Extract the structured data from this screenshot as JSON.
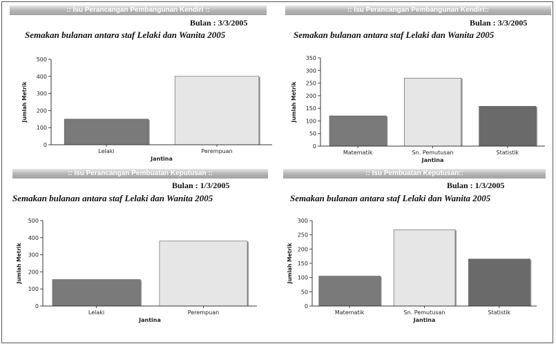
{
  "panels": [
    {
      "header": ":: Isu Perancangan Pembangunan Kendiri ::",
      "date": "Bulan : 3/3/2005",
      "title": "Semakan bulanan antara staf Lelaki dan Wanita 2005"
    },
    {
      "header": ":: Isu Perancangan Pembangunan Kendiri::",
      "date": "Bulan : 3/3/2005",
      "title": "Semakan bulanan antara staf Lelaki dan Wanita 2005"
    },
    {
      "header": ":: Isu Perancangan Pembuatan Keputusan ::",
      "date": "Bulan : 1/3/2005",
      "title": "Semakan bulanan antara staf Lelaki dan Wanita 2005"
    },
    {
      "header": ":: Isu Pembuatan Keputusan::",
      "date": "Bulan : 1/3/2005",
      "title": "Semakan bulanan antara staf Lelaki dan Wanita 2005"
    }
  ],
  "chart_data": [
    {
      "type": "bar",
      "categories": [
        "Lelaki",
        "Perempuan"
      ],
      "values": [
        150,
        400
      ],
      "colors": [
        "#7a7a7a",
        "#e6e6e6"
      ],
      "xlabel": "Jantina",
      "ylabel": "Jumlah Metrik",
      "ylim": [
        0,
        500
      ],
      "yticks": [
        "0",
        "100",
        "200",
        "300",
        "400",
        "500"
      ],
      "grid": false
    },
    {
      "type": "bar",
      "categories": [
        "Matematik",
        "Sn. Pemutusan",
        "Statistik"
      ],
      "values": [
        120,
        270,
        158
      ],
      "colors": [
        "#7a7a7a",
        "#e6e6e6",
        "#6a6a6a"
      ],
      "xlabel": "Jantina",
      "ylabel": "Jumlah Metrik",
      "ylim": [
        0,
        350
      ],
      "yticks": [
        "0",
        "50",
        "100",
        "150",
        "200",
        "250",
        "300",
        "350"
      ],
      "grid": false
    },
    {
      "type": "bar",
      "categories": [
        "Lelaki",
        "Perempuan"
      ],
      "values": [
        155,
        380
      ],
      "colors": [
        "#7a7a7a",
        "#e6e6e6"
      ],
      "xlabel": "Jantina",
      "ylabel": "Jumlah Metrik",
      "ylim": [
        0,
        500
      ],
      "yticks": [
        "0",
        "100",
        "200",
        "300",
        "400",
        "500"
      ],
      "grid": false
    },
    {
      "type": "bar",
      "categories": [
        "Matematik",
        "Sn. Pemutusan",
        "Statistik"
      ],
      "values": [
        105,
        268,
        165
      ],
      "colors": [
        "#7a7a7a",
        "#e6e6e6",
        "#6a6a6a"
      ],
      "xlabel": "Jantina",
      "ylabel": "Jumlah Metrik",
      "ylim": [
        0,
        300
      ],
      "yticks": [
        "0",
        "50",
        "100",
        "150",
        "200",
        "250",
        "300"
      ],
      "grid": false
    }
  ]
}
